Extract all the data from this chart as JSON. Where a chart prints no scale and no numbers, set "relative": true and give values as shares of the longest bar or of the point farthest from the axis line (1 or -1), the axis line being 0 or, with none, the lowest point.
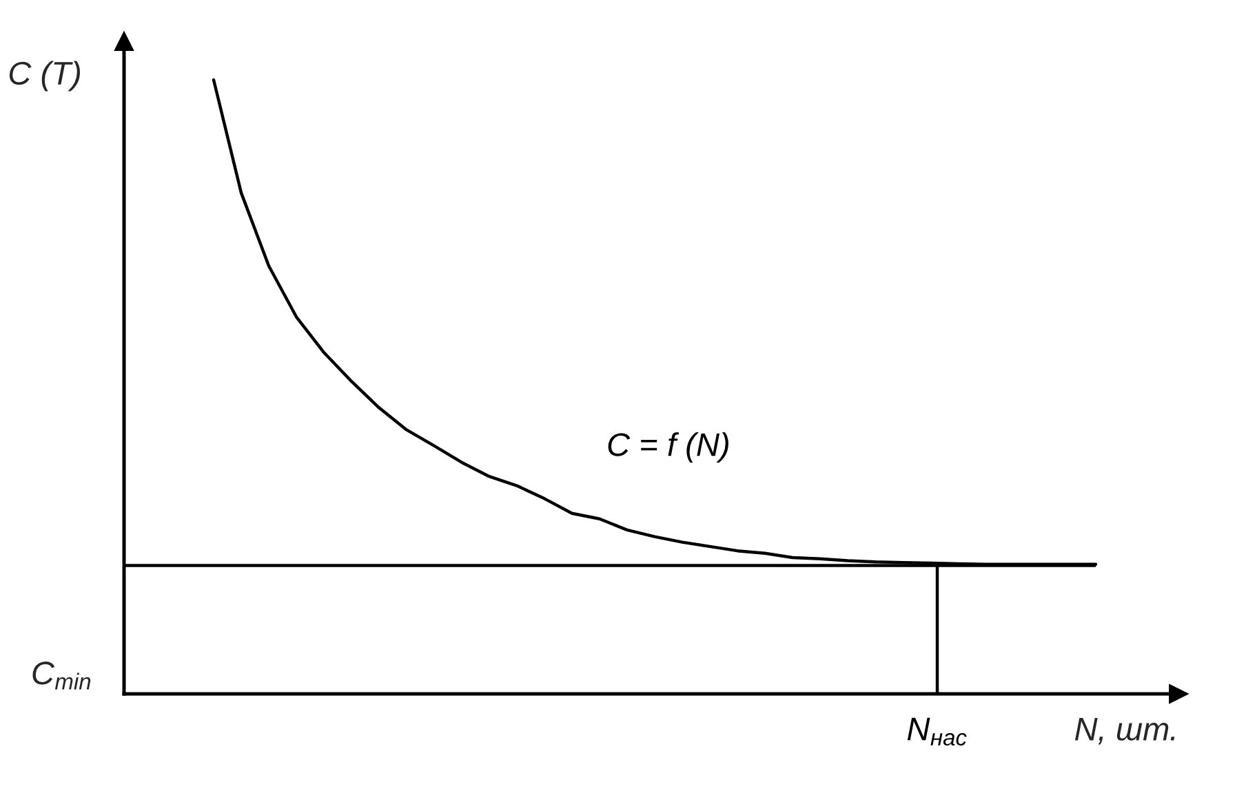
{
  "chart_data": {
    "type": "line",
    "relative": true,
    "ylabel": "C (T)",
    "xlabel": "N, шт.",
    "categories": [
      null,
      null,
      null,
      null,
      null,
      null,
      null,
      null,
      null,
      null,
      null,
      null,
      null,
      null,
      null,
      null,
      null,
      null,
      null,
      null,
      null,
      null,
      null,
      null,
      null,
      null,
      null,
      null,
      null,
      null,
      null,
      null,
      null
    ],
    "series": [
      {
        "color": "#000000",
        "values": [
          1.0,
          0.816,
          0.697,
          0.614,
          0.556,
          0.509,
          0.466,
          0.43,
          0.404,
          0.377,
          0.354,
          0.339,
          0.318,
          0.294,
          0.285,
          0.267,
          0.256,
          0.247,
          0.24,
          0.233,
          0.229,
          0.222,
          0.22,
          0.217,
          0.215,
          0.214,
          0.213,
          0.212,
          0.211,
          0.211,
          0.211,
          0.211,
          0.211
        ]
      }
    ],
    "ref_lines": [
      {
        "axis": "y",
        "value": 0.209,
        "label": "C$_{min}$",
        "color": "#000000"
      }
    ],
    "annotations": [
      "C = f (N)",
      "N$_{нас}$"
    ],
    "marker": "none",
    "line_style": "solid"
  }
}
